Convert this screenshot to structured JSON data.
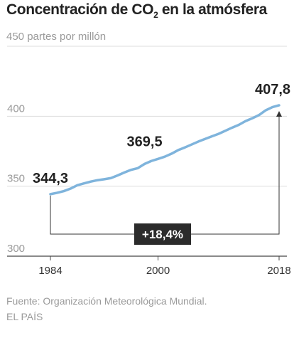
{
  "title": {
    "prefix": "Concentración de CO",
    "sub": "2",
    "suffix": " en la atmósfera"
  },
  "unit_label": "partes por millón",
  "source": "Fuente: Organización Meteorológica Mundial.",
  "publisher": "EL PAÍS",
  "change_label": "+18,4%",
  "colors": {
    "line": "#7fb4dc",
    "text": "#222222",
    "grid": "#dddddd",
    "muted": "#9a9a9a",
    "badge": "#2b2b2b"
  },
  "chart_data": {
    "type": "line",
    "title": "Concentración de CO2 en la atmósfera",
    "ylabel": "partes por millón",
    "xlabel": "",
    "xlim": [
      1984,
      2018
    ],
    "ylim": [
      300,
      450
    ],
    "yticks": [
      300,
      350,
      400,
      450
    ],
    "xticks": [
      "1984",
      "2000",
      "2018"
    ],
    "grid": true,
    "series": [
      {
        "x": [
          1984,
          1985,
          1986,
          1987,
          1988,
          1989,
          1990,
          1991,
          1992,
          1993,
          1994,
          1995,
          1996,
          1997,
          1998,
          1999,
          2000,
          2001,
          2002,
          2003,
          2004,
          2005,
          2006,
          2007,
          2008,
          2009,
          2010,
          2011,
          2012,
          2013,
          2014,
          2015,
          2016,
          2017,
          2018
        ],
        "values": [
          344.3,
          345.3,
          346.5,
          348.3,
          350.7,
          352.0,
          353.3,
          354.3,
          355.0,
          355.8,
          357.7,
          359.8,
          361.7,
          362.9,
          365.9,
          368.0,
          369.5,
          371.1,
          373.2,
          375.8,
          377.7,
          379.8,
          381.9,
          383.8,
          385.6,
          387.4,
          389.6,
          391.8,
          393.8,
          396.5,
          398.5,
          400.8,
          404.2,
          406.5,
          407.8
        ]
      }
    ],
    "annotations": [
      {
        "x": 1984,
        "y": 344.3,
        "label": "344,3"
      },
      {
        "x": 2000,
        "y": 369.5,
        "label": "369,5"
      },
      {
        "x": 2018,
        "y": 407.8,
        "label": "407,8"
      }
    ]
  }
}
